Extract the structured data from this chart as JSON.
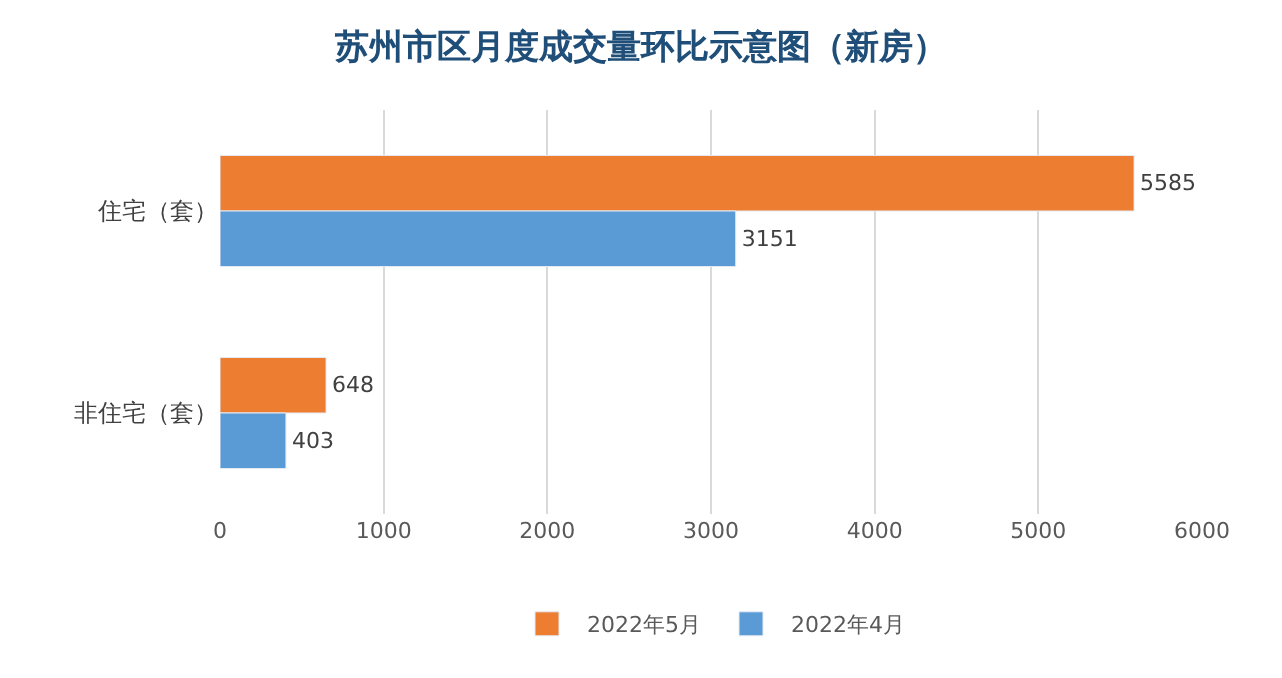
{
  "chart_data": {
    "type": "bar",
    "orientation": "horizontal",
    "title": "苏州市区月度成交量环比示意图（新房）",
    "categories": [
      "住宅（套）",
      "非住宅（套）"
    ],
    "series": [
      {
        "name": "2022年5月",
        "color": "#ed7d31",
        "values": [
          5585,
          648
        ]
      },
      {
        "name": "2022年4月",
        "color": "#5b9bd5",
        "values": [
          3151,
          403
        ]
      }
    ],
    "xlim": [
      0,
      6000
    ],
    "xticks": [
      0,
      1000,
      2000,
      3000,
      4000,
      5000,
      6000
    ],
    "grid": "x",
    "legend": "bottom",
    "data_labels": true
  }
}
